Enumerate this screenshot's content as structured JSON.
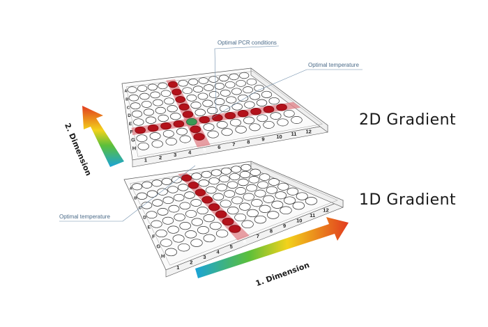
{
  "labels": {
    "gradient_2d": "2D Gradient",
    "gradient_1d": "1D Gradient",
    "optimal_pcr": "Optimal PCR conditions",
    "optimal_temp_top": "Optimal temperature",
    "optimal_temp_bottom": "Optimal temperature",
    "dimension_1": "1. Dimension",
    "dimension_2": "2. Dimension"
  },
  "plate": {
    "rows": [
      "A",
      "B",
      "C",
      "D",
      "E",
      "F",
      "G",
      "H"
    ],
    "cols": [
      "1",
      "2",
      "3",
      "4",
      "5",
      "6",
      "7",
      "8",
      "9",
      "10",
      "11",
      "12"
    ],
    "highlight_row_top": "F",
    "highlight_col_top": "5",
    "highlight_col_bottom": "6"
  },
  "colors": {
    "accent_red": "#b3121b",
    "band_pink": "#e07f86",
    "optimal_green": "#3a9a55",
    "plate_outline": "#555555",
    "callout_text": "#4a6a88"
  }
}
